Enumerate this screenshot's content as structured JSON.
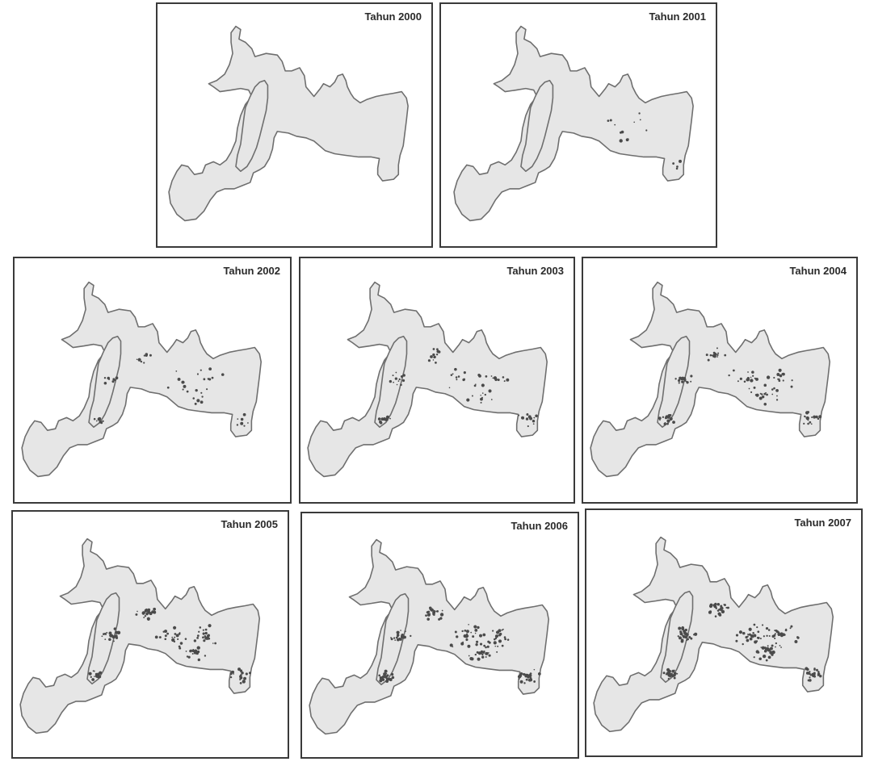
{
  "panels": [
    {
      "title": "Tahun 2000",
      "change_level": 0
    },
    {
      "title": "Tahun 2001",
      "change_level": 1
    },
    {
      "title": "Tahun 2002",
      "change_level": 2
    },
    {
      "title": "Tahun 2003",
      "change_level": 3
    },
    {
      "title": "Tahun 2004",
      "change_level": 4
    },
    {
      "title": "Tahun 2005",
      "change_level": 5
    },
    {
      "title": "Tahun 2006",
      "change_level": 6
    },
    {
      "title": "Tahun 2007",
      "change_level": 7
    }
  ],
  "colors": {
    "region_fill": "#e6e6e6",
    "region_outline": "#6e6e6e",
    "change_spots": "#4a4a4a",
    "frame": "#3a3a3a"
  }
}
